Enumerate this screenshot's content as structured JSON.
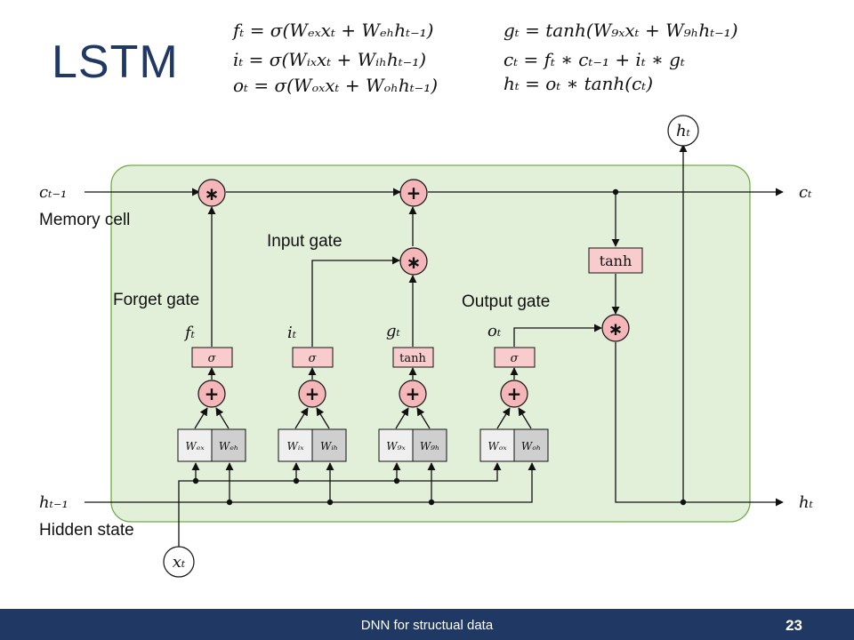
{
  "slide": {
    "title": "LSTM",
    "footer": "DNN for structual data",
    "page_number": "23"
  },
  "equations": {
    "f": "fₜ = σ(Wₑₓxₜ + Wₑₕhₜ₋₁)",
    "i": "iₜ = σ(Wᵢₓxₜ + Wᵢₕhₜ₋₁)",
    "o": "oₜ = σ(Wₒₓxₜ + Wₒₕhₜ₋₁)",
    "g": "gₜ = tanh(W₉ₓxₜ + W₉ₕhₜ₋₁)",
    "c": "cₜ = fₜ ∗ cₜ₋₁ + iₜ ∗ gₜ",
    "h": "hₜ = oₜ ∗ tanh(cₜ)"
  },
  "diagram": {
    "labels": {
      "memory_cell": "Memory cell",
      "hidden_state": "Hidden state",
      "forget_gate": "Forget gate",
      "input_gate": "Input gate",
      "output_gate": "Output gate"
    },
    "vars": {
      "c_prev": "cₜ₋₁",
      "c_t": "cₜ",
      "h_prev": "hₜ₋₁",
      "h_t_out": "hₜ",
      "h_t_top": "hₜ",
      "x_t": "xₜ",
      "f_t": "fₜ",
      "i_t": "iₜ",
      "g_t": "gₜ",
      "o_t": "oₜ"
    },
    "activations": {
      "sigma": "σ",
      "tanh": "tanh"
    },
    "ops": {
      "mul": "∗",
      "add": "+"
    },
    "weights": {
      "fx": "Wₑₓ",
      "fh": "Wₑₕ",
      "ix": "Wᵢₓ",
      "ih": "Wᵢₕ",
      "gx": "W₉ₓ",
      "gh": "W₉ₕ",
      "ox": "Wₒₓ",
      "oh": "Wₒₕ"
    },
    "colors": {
      "cell_bg": "#e2efd9",
      "cell_border": "#70ad47",
      "op_fill": "#f4b6b8",
      "gate_fill": "#f8cbcc",
      "weight_light": "#efefef",
      "weight_dark": "#cfcfcf",
      "footer_bg": "#1f3864"
    }
  }
}
